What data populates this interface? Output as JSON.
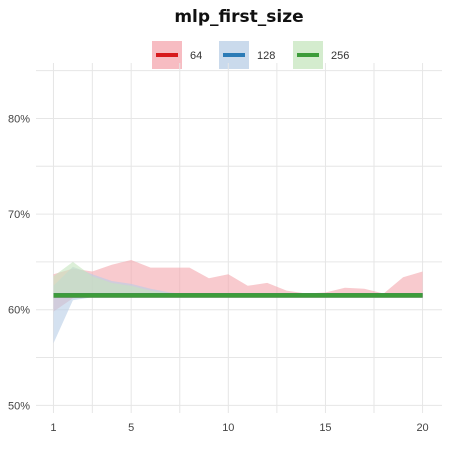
{
  "chart_data": {
    "type": "area",
    "title": "mlp_first_size",
    "xlabel": "",
    "ylabel": "",
    "x": [
      1,
      2,
      3,
      4,
      5,
      6,
      7,
      8,
      9,
      10,
      11,
      12,
      13,
      14,
      15,
      16,
      17,
      18,
      19,
      20
    ],
    "xticks": [
      1,
      5,
      10,
      15,
      20
    ],
    "xlim": [
      0.1,
      21.0
    ],
    "ylim": [
      49.2,
      85.8
    ],
    "yticks": [
      50,
      60,
      70,
      80
    ],
    "ytick_labels": [
      "50%",
      "60%",
      "70%",
      "80%"
    ],
    "grid": true,
    "legend_position": "top-center",
    "series": [
      {
        "name": "64",
        "color": "#d7191c",
        "fill": "#f4a6ae",
        "line": [
          61.5,
          61.5,
          61.5,
          61.5,
          61.5,
          61.5,
          61.5,
          61.5,
          61.5,
          61.5,
          61.5,
          61.5,
          61.5,
          61.5,
          61.5,
          61.5,
          61.5,
          61.5,
          61.5,
          61.5
        ],
        "upper": [
          63.7,
          64.3,
          64.0,
          64.7,
          65.2,
          64.4,
          64.4,
          64.4,
          63.3,
          63.7,
          62.5,
          62.8,
          62.0,
          61.7,
          61.8,
          62.3,
          62.2,
          61.7,
          63.4,
          64.0
        ],
        "lower": [
          59.8,
          61.2,
          61.3,
          61.5,
          61.5,
          61.5,
          61.5,
          61.5,
          61.5,
          61.5,
          61.5,
          61.5,
          61.5,
          61.5,
          61.5,
          61.5,
          61.5,
          61.5,
          61.5,
          61.5
        ]
      },
      {
        "name": "128",
        "color": "#2c7bb6",
        "fill": "#b8cde6",
        "line": [
          61.5,
          61.5,
          61.5,
          61.5,
          61.5,
          61.5,
          61.5,
          61.5,
          61.5,
          61.5,
          61.5,
          61.5,
          61.5,
          61.5,
          61.5,
          61.5,
          61.5,
          61.5,
          61.5,
          61.5
        ],
        "upper": [
          62.5,
          64.5,
          63.7,
          63.0,
          62.7,
          62.2,
          61.8,
          61.6,
          61.5,
          61.5,
          61.5,
          61.5,
          61.5,
          61.5,
          61.5,
          61.5,
          61.5,
          61.5,
          61.5,
          61.5
        ],
        "lower": [
          56.5,
          61.0,
          61.3,
          61.5,
          61.5,
          61.5,
          61.5,
          61.5,
          61.5,
          61.5,
          61.5,
          61.5,
          61.5,
          61.5,
          61.5,
          61.5,
          61.5,
          61.5,
          61.5,
          61.5
        ]
      },
      {
        "name": "256",
        "color": "#3d9c3a",
        "fill": "#c5e5be",
        "line": [
          61.5,
          61.5,
          61.5,
          61.5,
          61.5,
          61.5,
          61.5,
          61.5,
          61.5,
          61.5,
          61.5,
          61.5,
          61.5,
          61.5,
          61.5,
          61.5,
          61.5,
          61.5,
          61.5,
          61.5
        ],
        "upper": [
          63.5,
          65.0,
          63.5,
          62.8,
          62.5,
          62.0,
          61.7,
          61.5,
          61.5,
          61.5,
          61.5,
          61.5,
          61.5,
          61.5,
          61.5,
          61.5,
          61.5,
          61.5,
          61.5,
          61.5
        ],
        "lower": [
          61.5,
          61.5,
          61.5,
          61.5,
          61.5,
          61.5,
          61.5,
          61.5,
          61.5,
          61.5,
          61.5,
          61.5,
          61.5,
          61.5,
          61.5,
          61.5,
          61.5,
          61.5,
          61.5,
          61.5
        ]
      }
    ]
  }
}
